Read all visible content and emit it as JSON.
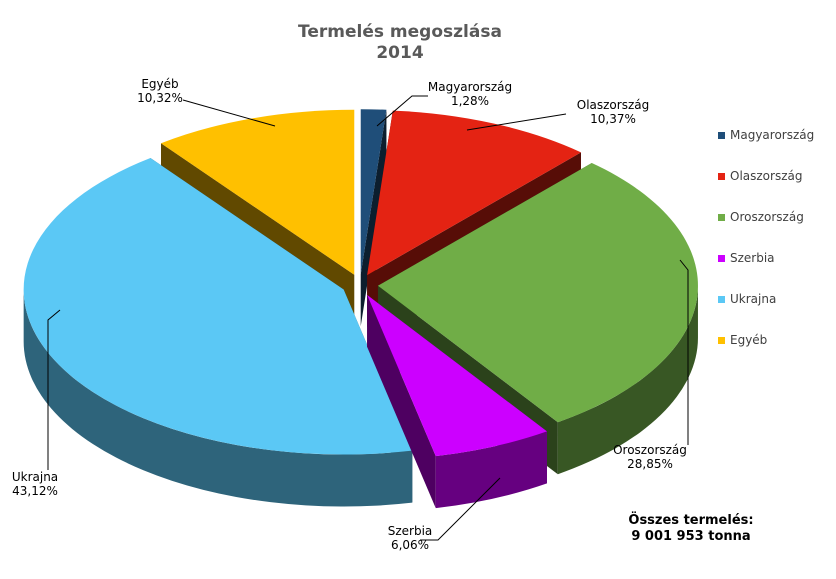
{
  "chart_data": {
    "type": "pie",
    "title": "Termelés megoszlása",
    "subtitle": "2014",
    "slices": [
      {
        "name": "Magyarország",
        "value": 1.28,
        "label": "1,28%",
        "color": "#1F4E79"
      },
      {
        "name": "Olaszország",
        "value": 10.37,
        "label": "10,37%",
        "color": "#E42313"
      },
      {
        "name": "Oroszország",
        "value": 28.85,
        "label": "28,85%",
        "color": "#70AD47"
      },
      {
        "name": "Szerbia",
        "value": 6.06,
        "label": "6,06%",
        "color": "#CC00FF"
      },
      {
        "name": "Ukrajna",
        "value": 43.12,
        "label": "43,12%",
        "color": "#5BC8F5"
      },
      {
        "name": "Egyéb",
        "value": 10.32,
        "label": "10,32%",
        "color": "#FFC000"
      }
    ],
    "legend_position": "right",
    "style": "3d-exploded"
  },
  "total": {
    "label": "Összes termelés:",
    "value": "9 001 953 tonna"
  }
}
